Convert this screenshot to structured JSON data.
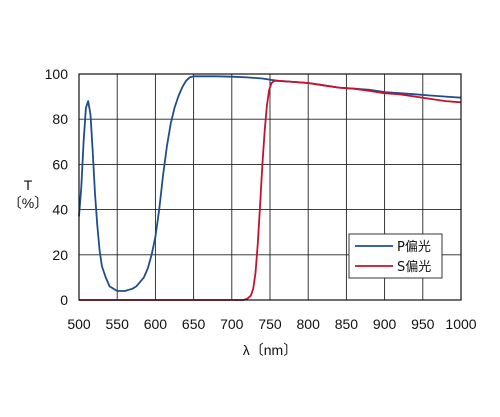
{
  "chart_data": {
    "type": "line",
    "xlabel": "λ〔nm〕",
    "ylabel_line1": "T",
    "ylabel_line2": "〔%〕",
    "xlim": [
      500,
      1000
    ],
    "ylim": [
      0,
      100
    ],
    "x_ticks": [
      500,
      550,
      600,
      650,
      700,
      750,
      800,
      850,
      900,
      950,
      1000
    ],
    "y_ticks": [
      0,
      20,
      40,
      60,
      80,
      100
    ],
    "grid": true,
    "legend_position": "bottom-right",
    "series": [
      {
        "name": "P偏光",
        "color": "#1f4e8c",
        "points": [
          [
            500,
            37
          ],
          [
            503,
            50
          ],
          [
            506,
            70
          ],
          [
            509,
            85
          ],
          [
            512,
            88
          ],
          [
            515,
            82
          ],
          [
            518,
            65
          ],
          [
            521,
            47
          ],
          [
            524,
            33
          ],
          [
            527,
            22
          ],
          [
            530,
            15
          ],
          [
            535,
            10
          ],
          [
            540,
            6
          ],
          [
            545,
            5
          ],
          [
            550,
            4
          ],
          [
            555,
            4
          ],
          [
            560,
            4
          ],
          [
            565,
            4.5
          ],
          [
            570,
            5
          ],
          [
            575,
            6
          ],
          [
            580,
            8
          ],
          [
            585,
            10
          ],
          [
            590,
            14
          ],
          [
            595,
            20
          ],
          [
            600,
            28
          ],
          [
            605,
            40
          ],
          [
            610,
            55
          ],
          [
            615,
            68
          ],
          [
            620,
            78
          ],
          [
            625,
            85
          ],
          [
            630,
            90
          ],
          [
            635,
            94
          ],
          [
            640,
            97
          ],
          [
            645,
            98.5
          ],
          [
            650,
            99
          ],
          [
            660,
            99
          ],
          [
            680,
            99
          ],
          [
            700,
            98.8
          ],
          [
            720,
            98.5
          ],
          [
            740,
            98
          ],
          [
            760,
            97
          ],
          [
            780,
            96.5
          ],
          [
            800,
            96
          ],
          [
            820,
            95
          ],
          [
            840,
            94
          ],
          [
            860,
            93.5
          ],
          [
            880,
            93
          ],
          [
            900,
            92
          ],
          [
            920,
            91.5
          ],
          [
            940,
            91
          ],
          [
            960,
            90.5
          ],
          [
            980,
            90
          ],
          [
            1000,
            89.5
          ]
        ]
      },
      {
        "name": "S偏光",
        "color": "#c8102e",
        "points": [
          [
            500,
            0
          ],
          [
            600,
            0
          ],
          [
            700,
            0
          ],
          [
            715,
            0
          ],
          [
            720,
            0.5
          ],
          [
            725,
            2
          ],
          [
            728,
            5
          ],
          [
            731,
            12
          ],
          [
            734,
            25
          ],
          [
            737,
            42
          ],
          [
            740,
            60
          ],
          [
            743,
            75
          ],
          [
            746,
            86
          ],
          [
            749,
            93
          ],
          [
            752,
            96
          ],
          [
            756,
            97
          ],
          [
            760,
            97
          ],
          [
            780,
            96.5
          ],
          [
            800,
            96
          ],
          [
            820,
            95
          ],
          [
            840,
            94
          ],
          [
            860,
            93.5
          ],
          [
            880,
            92.5
          ],
          [
            900,
            91.5
          ],
          [
            920,
            91
          ],
          [
            940,
            90
          ],
          [
            960,
            89
          ],
          [
            980,
            88
          ],
          [
            1000,
            87.5
          ]
        ]
      }
    ]
  }
}
